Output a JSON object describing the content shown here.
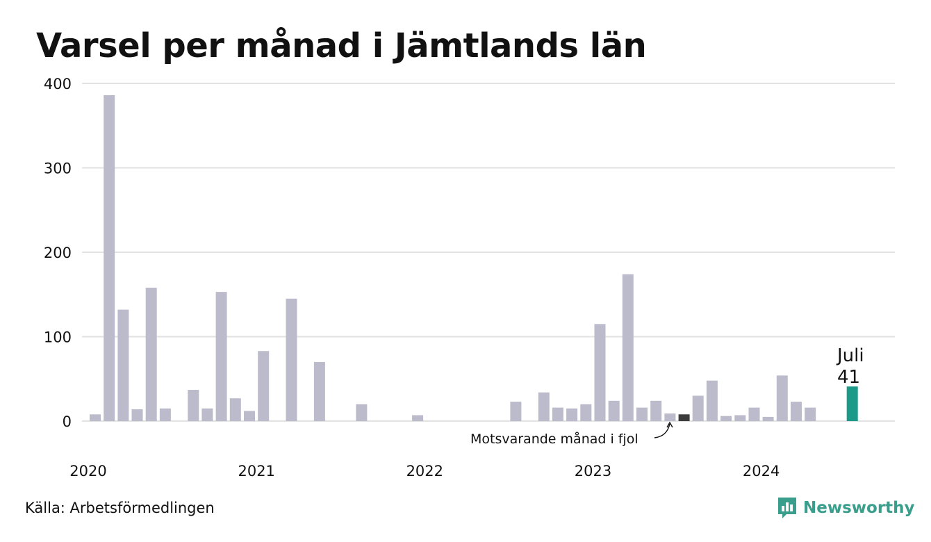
{
  "title": "Varsel per månad i Jämtlands län",
  "source": "Källa: Arbetsförmedlingen",
  "brand": {
    "name": "Newsworthy",
    "icon": "newsworthy-logo-icon",
    "color": "#3a9e8c"
  },
  "annotation": "Motsvarande månad i fjol",
  "highlight": {
    "month_label": "Juli",
    "value_label": "41"
  },
  "colors": {
    "bar": "#bcbbcb",
    "previous_year": "#3c3c3c",
    "current": "#1b9a8a",
    "grid": "#e2e2e2"
  },
  "chart_data": {
    "type": "bar",
    "xlabel": "",
    "ylabel": "",
    "ylim": [
      0,
      400
    ],
    "yticks": [
      0,
      100,
      200,
      300,
      400
    ],
    "grid": true,
    "x_start": "2020-01",
    "year_labels": [
      "2020",
      "2021",
      "2022",
      "2023",
      "2024"
    ],
    "values": [
      8,
      386,
      132,
      14,
      158,
      15,
      0,
      37,
      15,
      153,
      27,
      12,
      83,
      0,
      145,
      0,
      70,
      0,
      0,
      20,
      0,
      0,
      0,
      7,
      0,
      0,
      0,
      0,
      0,
      0,
      23,
      0,
      34,
      16,
      15,
      20,
      115,
      24,
      174,
      16,
      24,
      9,
      8,
      30,
      48,
      6,
      7,
      16,
      5,
      54,
      23,
      16,
      0,
      0,
      41
    ],
    "highlight_index": 54,
    "previous_year_indices": [
      6,
      42
    ]
  }
}
